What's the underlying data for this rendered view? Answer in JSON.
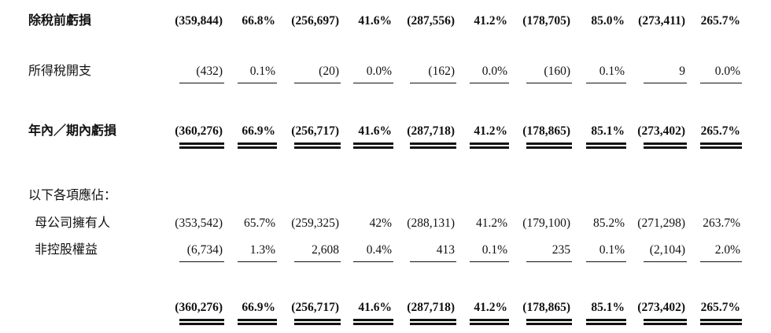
{
  "rows": [
    {
      "label": "除稅前虧損",
      "bold": true,
      "values": [
        "(359,844)",
        "66.8%",
        "(256,697)",
        "41.6%",
        "(287,556)",
        "41.2%",
        "(178,705)",
        "85.0%",
        "(273,411)",
        "265.7%"
      ]
    },
    {
      "label": "所得稅開支",
      "bold": false,
      "values": [
        "(432)",
        "0.1%",
        "(20)",
        "0.0%",
        "(162)",
        "0.0%",
        "(160)",
        "0.1%",
        "9",
        "0.0%"
      ]
    },
    {
      "label": "年內／期內虧損",
      "bold": true,
      "values": [
        "(360,276)",
        "66.9%",
        "(256,717)",
        "41.6%",
        "(287,718)",
        "41.2%",
        "(178,865)",
        "85.1%",
        "(273,402)",
        "265.7%"
      ]
    },
    {
      "label": "以下各項應佔：",
      "bold": false,
      "values": []
    },
    {
      "label": "母公司擁有人",
      "bold": false,
      "values": [
        "(353,542)",
        "65.7%",
        "(259,325)",
        "42%",
        "(288,131)",
        "41.2%",
        "(179,100)",
        "85.2%",
        "(271,298)",
        "263.7%"
      ]
    },
    {
      "label": "非控股權益",
      "bold": false,
      "values": [
        "(6,734)",
        "1.3%",
        "2,608",
        "0.4%",
        "413",
        "0.1%",
        "235",
        "0.1%",
        "(2,104)",
        "2.0%"
      ]
    },
    {
      "label": "",
      "bold": true,
      "values": [
        "(360,276)",
        "66.9%",
        "(256,717)",
        "41.6%",
        "(287,718)",
        "41.2%",
        "(178,865)",
        "85.1%",
        "(273,402)",
        "265.7%"
      ]
    }
  ]
}
